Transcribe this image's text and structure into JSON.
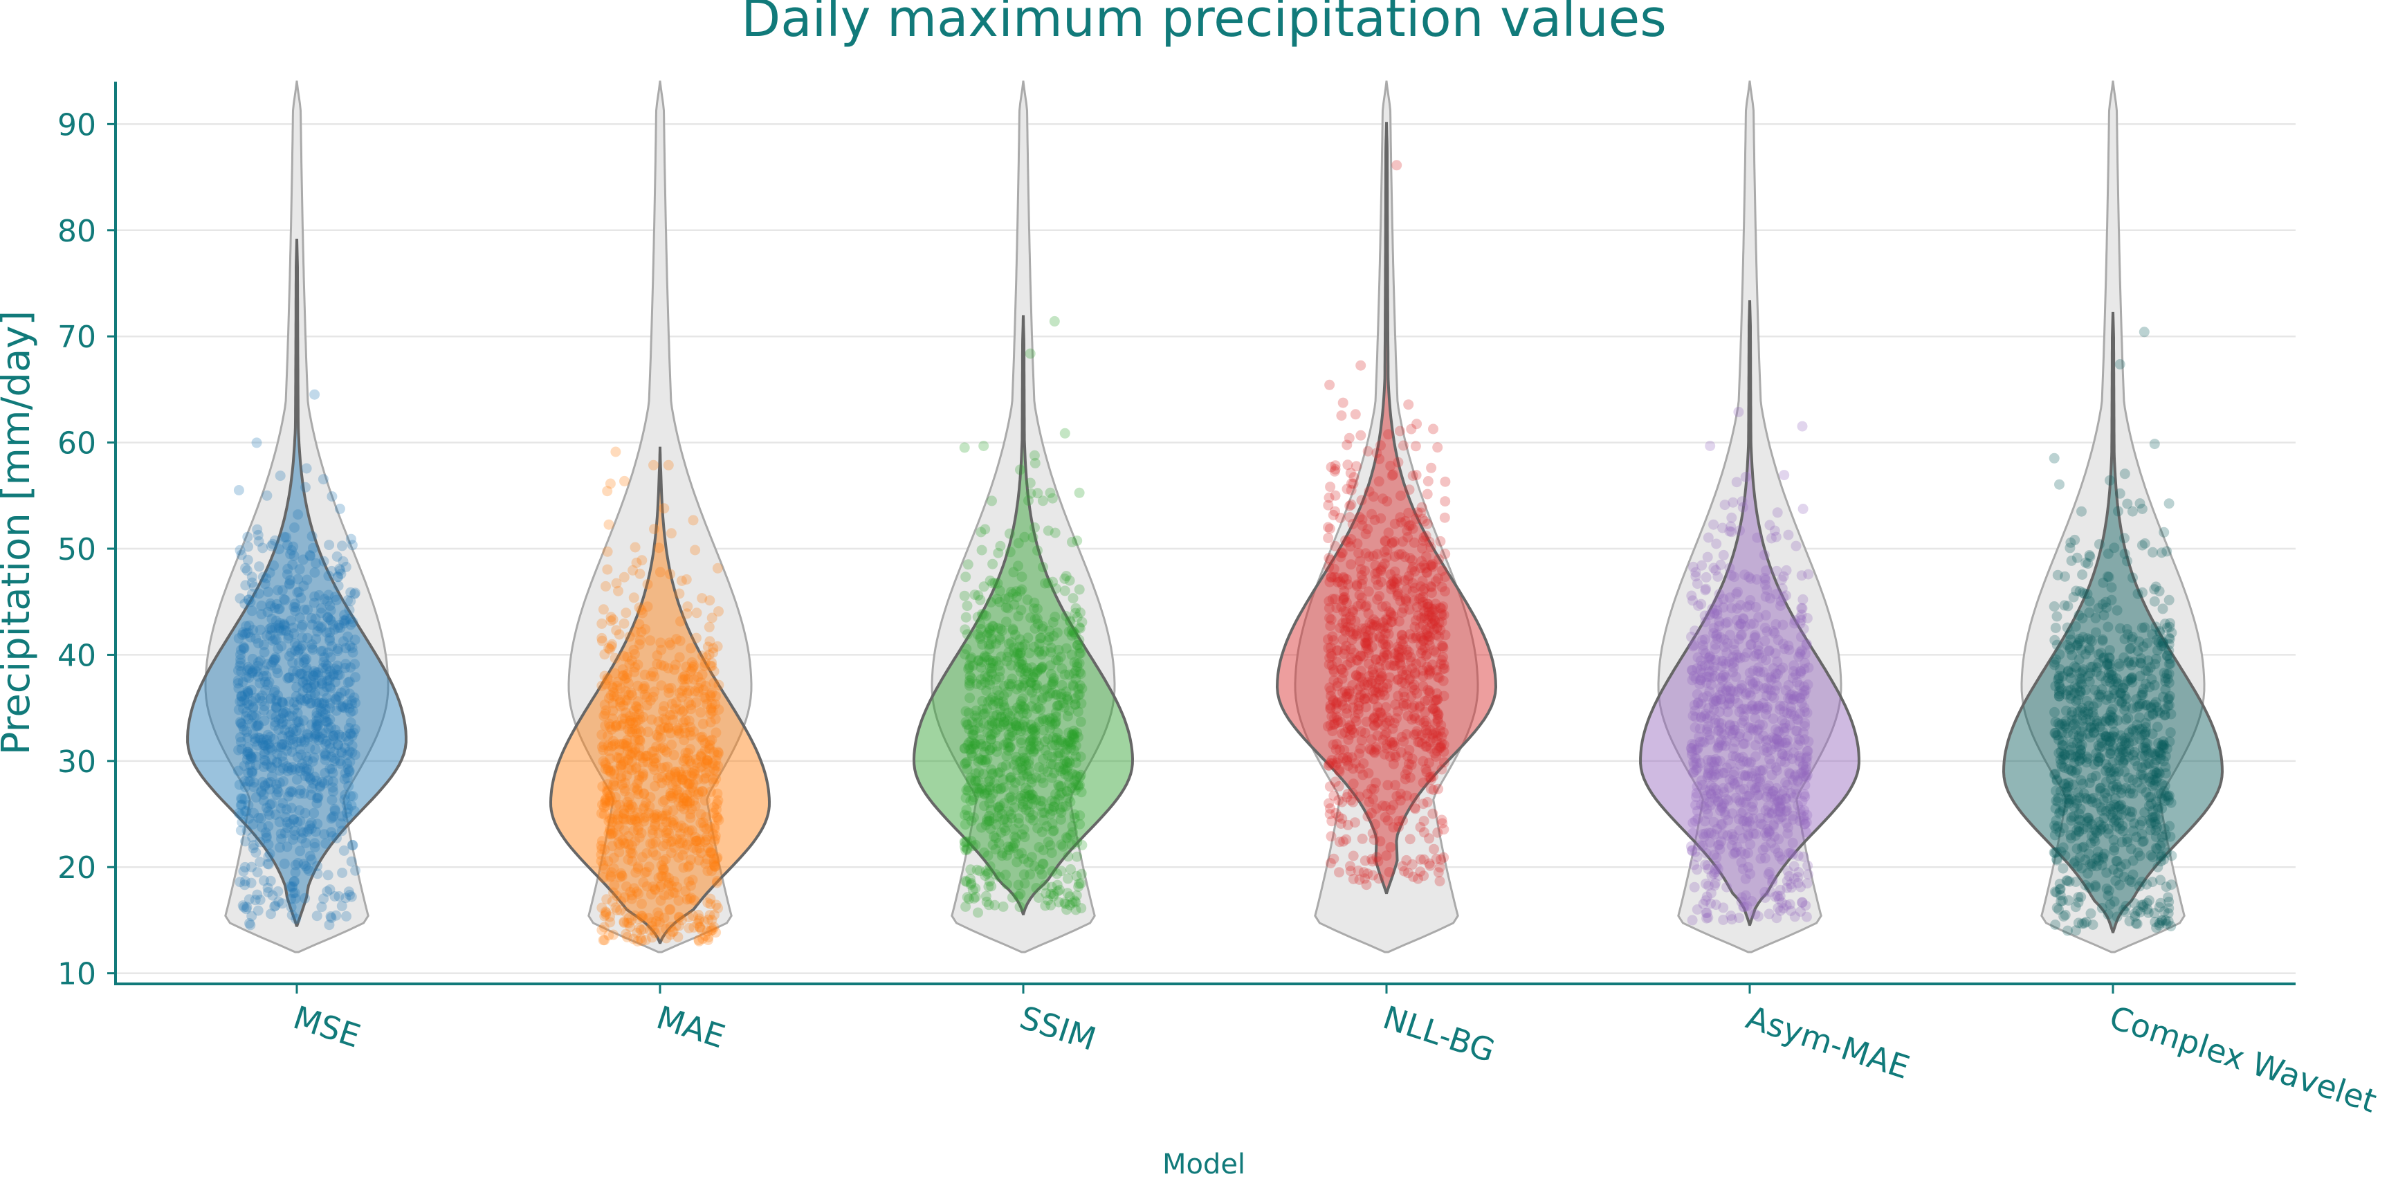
{
  "chart_data": {
    "type": "violin",
    "title": "Daily maximum precipitation values",
    "xlabel": "Model",
    "ylabel": "Precipitation [mm/day]",
    "ylim": [
      9,
      94
    ],
    "yticks": [
      10,
      20,
      30,
      40,
      50,
      60,
      70,
      80,
      90
    ],
    "grid": "horizontal",
    "legend": "none",
    "reference_distribution": {
      "description_color": "#e8e8e8",
      "mode": 37,
      "bottom": 12,
      "top": 94
    },
    "categories": [
      "MSE",
      "MAE",
      "SSIM",
      "NLL-BG",
      "Asym-MAE",
      "Complex Wavelet"
    ],
    "series": [
      {
        "category": "MSE",
        "color": "#1f77b4",
        "min": 14.5,
        "max": 79.2,
        "mode": 32,
        "points_min": 14.5,
        "points_max": 79
      },
      {
        "category": "MAE",
        "color": "#ff7f0e",
        "min": 12.9,
        "max": 59.6,
        "mode": 26,
        "points_min": 13,
        "points_max": 60
      },
      {
        "category": "SSIM",
        "color": "#2ca02c",
        "min": 15.6,
        "max": 72.0,
        "mode": 30,
        "points_min": 15.7,
        "points_max": 72
      },
      {
        "category": "NLL-BG",
        "color": "#d62728",
        "min": 17.6,
        "max": 90.2,
        "mode": 37,
        "points_min": 18,
        "points_max": 90
      },
      {
        "category": "Asym-MAE",
        "color": "#9467bd",
        "min": 14.6,
        "max": 73.4,
        "mode": 30,
        "points_min": 14.8,
        "points_max": 73
      },
      {
        "category": "Complex Wavelet",
        "color": "#0b5e5e",
        "min": 13.9,
        "max": 72.3,
        "mode": 29,
        "points_min": 14,
        "points_max": 72
      }
    ],
    "colors": {
      "axis_text": "#117a7a",
      "grid": "#e6e6e6",
      "violin_outline": "#666666"
    }
  }
}
